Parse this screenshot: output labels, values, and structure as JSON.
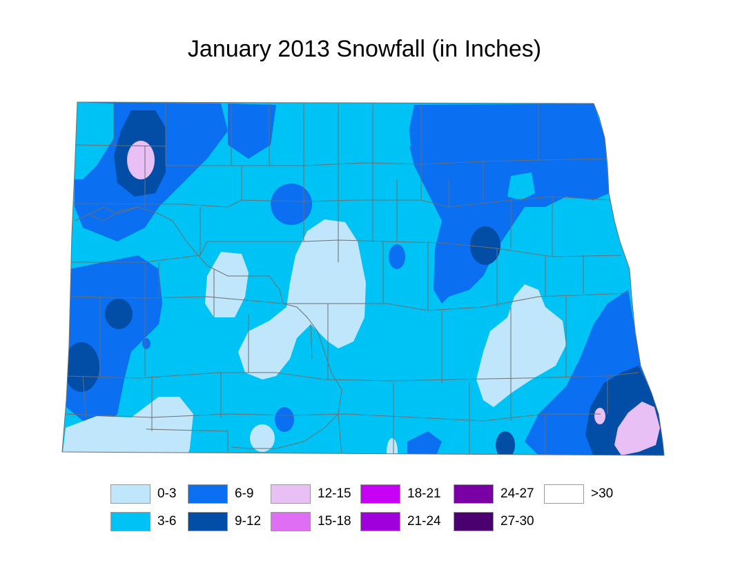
{
  "title": "January 2013 Snowfall (in Inches)",
  "colors": {
    "c0_3": "#bfe6fb",
    "c3_6": "#00c3f5",
    "c6_9": "#0a6ff0",
    "c9_12": "#024ea6",
    "c12_15": "#e9c0f6",
    "c15_18": "#e06ef5",
    "c18_21": "#c800f5",
    "c21_24": "#a000dc",
    "c24_27": "#7a00a6",
    "c27_30": "#4a006e",
    "c30p": "#ffffff",
    "county_line": "#6e6e6e"
  },
  "legend": [
    {
      "label": "0-3",
      "color": "#bfe6fb"
    },
    {
      "label": "3-6",
      "color": "#00c3f5"
    },
    {
      "label": "6-9",
      "color": "#0a6ff0"
    },
    {
      "label": "9-12",
      "color": "#024ea6"
    },
    {
      "label": "12-15",
      "color": "#e9c0f6"
    },
    {
      "label": "15-18",
      "color": "#e06ef5"
    },
    {
      "label": "18-21",
      "color": "#c800f5"
    },
    {
      "label": "21-24",
      "color": "#a000dc"
    },
    {
      "label": "24-27",
      "color": "#7a00a6"
    },
    {
      "label": "27-30",
      "color": "#4a006e"
    },
    {
      "label": ">30",
      "color": "#ffffff"
    }
  ]
}
